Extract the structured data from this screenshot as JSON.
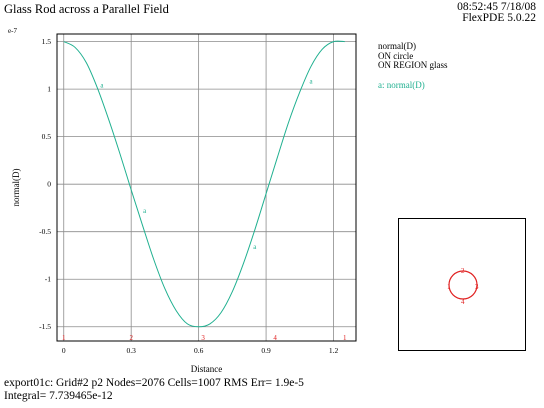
{
  "header": {
    "title": "Glass Rod across a Parallel Field",
    "time": "08:52:45 7/18/08",
    "version": "FlexPDE 5.0.22"
  },
  "legend": {
    "lines": [
      "normal(D)",
      "ON circle",
      "ON REGION glass"
    ],
    "series_label": "a: normal(D)"
  },
  "footer": {
    "line1": "export01c:  Grid#2  p2  Nodes=2076 Cells=1007 RMS Err= 1.9e-5",
    "line2": "Integral=  7.739465e-12"
  },
  "chart_data": {
    "type": "line",
    "title": "",
    "xlabel": "Distance",
    "ylabel": "normal(D)",
    "y_scale_label": "e-7",
    "xlim": [
      -0.03,
      1.3
    ],
    "ylim": [
      -1.65,
      1.58
    ],
    "x_ticks": [
      0,
      0.3,
      0.6,
      0.9,
      1.2
    ],
    "x_tick_labels": [
      "0",
      "0.3",
      "0.6",
      "0.9",
      "1.2"
    ],
    "y_ticks": [
      1.5,
      1,
      0.5,
      0,
      -0.5,
      -1,
      -1.5
    ],
    "y_tick_labels": [
      "1.5",
      "1",
      "0.5",
      "0",
      "-0.5",
      "-1",
      "-1.5"
    ],
    "grid": true,
    "series": [
      {
        "name": "a",
        "color": "#20b090",
        "x": [
          0,
          0.05,
          0.1,
          0.15,
          0.2,
          0.25,
          0.3,
          0.35,
          0.4,
          0.45,
          0.5,
          0.55,
          0.6,
          0.65,
          0.7,
          0.75,
          0.8,
          0.85,
          0.9,
          0.95,
          1.0,
          1.05,
          1.1,
          1.15,
          1.2,
          1.25
        ],
        "values": [
          1.5,
          1.44,
          1.28,
          1.01,
          0.68,
          0.32,
          -0.06,
          -0.43,
          -0.79,
          -1.1,
          -1.33,
          -1.47,
          -1.5,
          -1.47,
          -1.35,
          -1.13,
          -0.83,
          -0.48,
          -0.1,
          0.28,
          0.65,
          0.97,
          1.24,
          1.42,
          1.5,
          1.5
        ],
        "markers": [
          {
            "x": 0.17,
            "y": 1.04,
            "label": "a"
          },
          {
            "x": 0.36,
            "y": -0.28,
            "label": "a"
          },
          {
            "x": 0.85,
            "y": -0.66,
            "label": "a"
          },
          {
            "x": 1.1,
            "y": 1.08,
            "label": "a"
          }
        ]
      }
    ],
    "node_markers": [
      {
        "x": 0,
        "label": "1"
      },
      {
        "x": 0.3,
        "label": "2"
      },
      {
        "x": 0.62,
        "label": "3"
      },
      {
        "x": 0.94,
        "label": "4"
      },
      {
        "x": 1.25,
        "label": "1"
      }
    ],
    "node_marker_color": "#e02020"
  },
  "inset": {
    "labels": [
      "1",
      "2",
      "3",
      "4"
    ],
    "color": "#e02020"
  }
}
